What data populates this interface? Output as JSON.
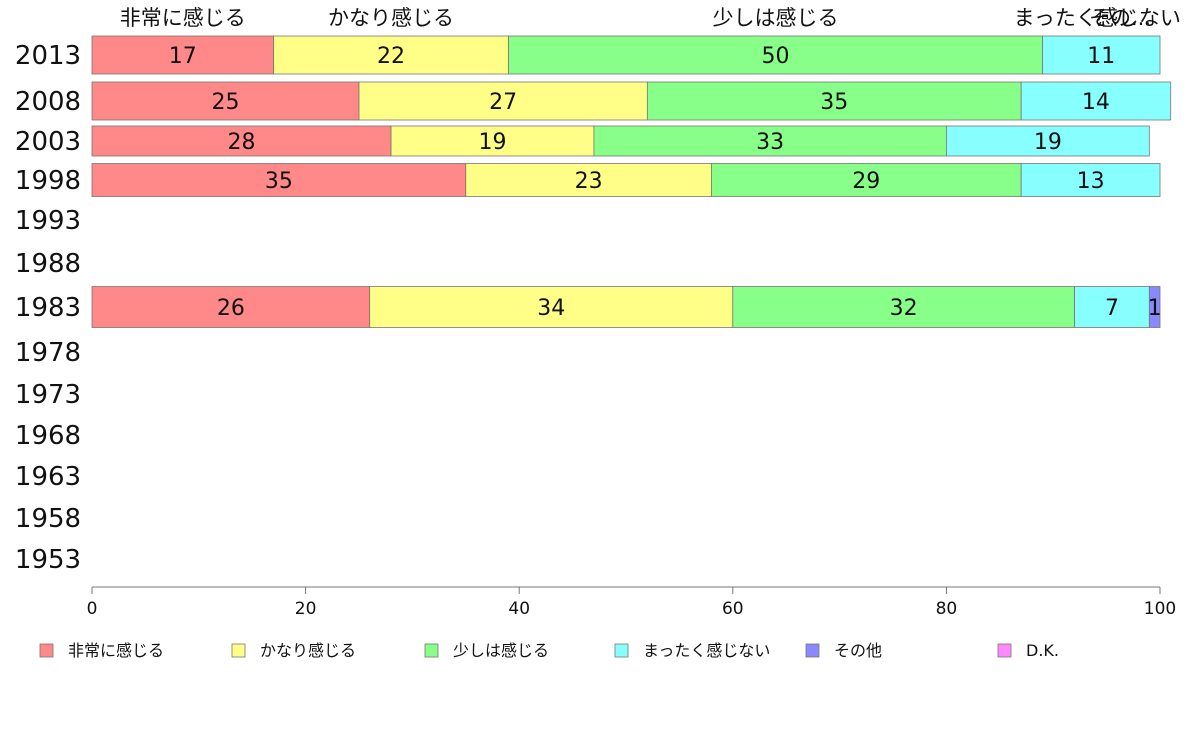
{
  "chart_data": {
    "type": "bar",
    "orientation": "horizontal",
    "stacked": true,
    "title": "",
    "xlabel": "",
    "ylabel": "",
    "xlim": [
      0,
      100
    ],
    "x_ticks": [
      0,
      20,
      40,
      60,
      80,
      100
    ],
    "categories": [
      "2013",
      "2008",
      "2003",
      "1998",
      "1993",
      "1988",
      "1983",
      "1978",
      "1973",
      "1968",
      "1963",
      "1958",
      "1953"
    ],
    "series": [
      {
        "name": "非常に感じる",
        "color": "#ff8888",
        "values": [
          17,
          25,
          28,
          35,
          null,
          null,
          26,
          null,
          null,
          null,
          null,
          null,
          null
        ]
      },
      {
        "name": "かなり感じる",
        "color": "#ffff88",
        "values": [
          22,
          27,
          19,
          23,
          null,
          null,
          34,
          null,
          null,
          null,
          null,
          null,
          null
        ]
      },
      {
        "name": "少しは感じる",
        "color": "#88ff88",
        "values": [
          50,
          35,
          33,
          29,
          null,
          null,
          32,
          null,
          null,
          null,
          null,
          null,
          null
        ]
      },
      {
        "name": "まったく感じない",
        "color": "#88ffff",
        "values": [
          11,
          14,
          19,
          13,
          null,
          null,
          7,
          null,
          null,
          null,
          null,
          null,
          null
        ]
      },
      {
        "name": "その他",
        "color": "#8888ff",
        "values": [
          0,
          0,
          0,
          0,
          null,
          null,
          1,
          null,
          null,
          null,
          null,
          null,
          null
        ]
      },
      {
        "name": "D.K.",
        "color": "#ff88ff",
        "values": [
          0,
          0,
          0,
          0,
          null,
          null,
          0,
          null,
          null,
          null,
          null,
          null,
          null
        ]
      }
    ],
    "top_labels": [
      "非常に感じる",
      "かなり感じる",
      "少しは感じる",
      "まったく感じない",
      "その..."
    ],
    "legend_position": "bottom",
    "grid": false
  }
}
